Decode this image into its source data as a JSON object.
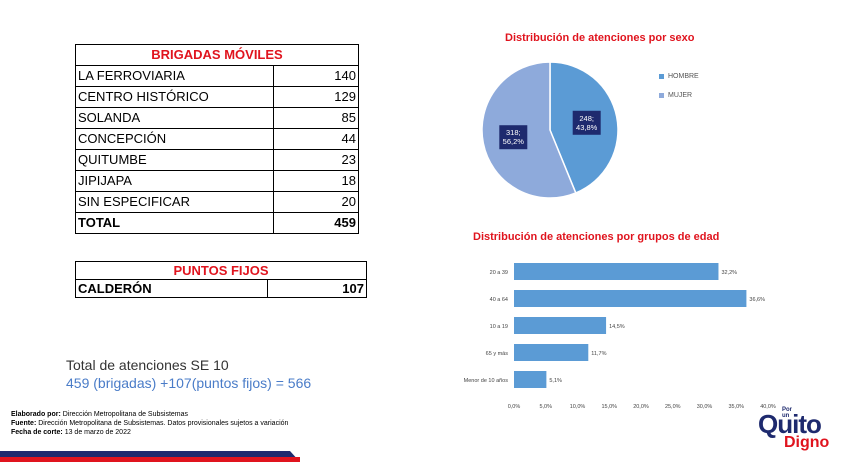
{
  "brigadas": {
    "header": "BRIGADAS MÓVILES",
    "rows": [
      {
        "label": "LA FERROVIARIA",
        "value": "140"
      },
      {
        "label": "CENTRO HISTÓRICO",
        "value": "129"
      },
      {
        "label": "SOLANDA",
        "value": "85"
      },
      {
        "label": "CONCEPCIÓN",
        "value": "44"
      },
      {
        "label": "QUITUMBE",
        "value": "23"
      },
      {
        "label": "JIPIJAPA",
        "value": "18"
      },
      {
        "label": "SIN ESPECIFICAR",
        "value": "20"
      }
    ],
    "total_label": "TOTAL",
    "total_value": "459"
  },
  "puntos_fijos": {
    "header": "PUNTOS FIJOS",
    "label": "CALDERÓN",
    "value": "107"
  },
  "totals": {
    "line1": "Total de atenciones SE 10",
    "line2": "459 (brigadas) +107(puntos fijos) =  566"
  },
  "footer": {
    "elaborado_label": "Elaborado por:",
    "elaborado_value": " Dirección Metropolitana de Subsistemas",
    "fuente_label": "Fuente:",
    "fuente_value": " Dirección Metropolitana de Subsistemas. Datos provisionales sujetos a variación",
    "fecha_label": "Fecha de corte:",
    "fecha_value": " 13 de marzo  de 2022"
  },
  "logo": {
    "small": "Por un",
    "main": "Quito",
    "sub": "Digno"
  },
  "colors": {
    "red": "#e0141e",
    "navy": "#1e2a6e",
    "hombre": "#5b9bd5",
    "mujer": "#8eaadb",
    "bar": "#5b9bd5"
  },
  "chart_data": [
    {
      "type": "pie",
      "title": "Distribución de atenciones por sexo",
      "legend_position": "right",
      "series": [
        {
          "name": "HOMBRE",
          "value": 248,
          "label": "248;\n43,8%"
        },
        {
          "name": "MUJER",
          "value": 318,
          "label": "318;\n56,2%"
        }
      ]
    },
    {
      "type": "bar",
      "orientation": "horizontal",
      "title": "Distribución de atenciones por grupos de edad",
      "categories": [
        "20 a 39",
        "40 a 64",
        "10 a 19",
        "65 y más",
        "Menor de 10 años"
      ],
      "values": [
        32.2,
        36.6,
        14.5,
        11.7,
        5.1
      ],
      "value_labels": [
        "32,2%",
        "36,6%",
        "14,5%",
        "11,7%",
        "5,1%"
      ],
      "xlim": [
        0,
        40
      ],
      "x_ticks": [
        "0,0%",
        "5,0%",
        "10,0%",
        "15,0%",
        "20,0%",
        "25,0%",
        "30,0%",
        "35,0%",
        "40,0%"
      ],
      "grid": false
    }
  ]
}
